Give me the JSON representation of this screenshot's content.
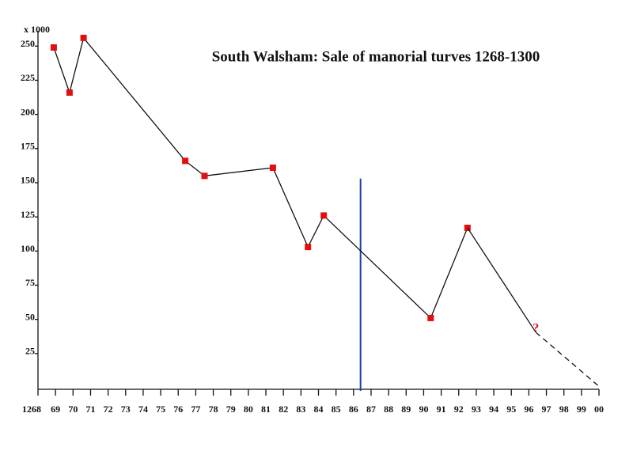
{
  "chart_data": {
    "type": "line",
    "title": "South Walsham: Sale of manorial turves 1268-1300",
    "ylabel": "x 1000",
    "xlim": [
      1268,
      1300
    ],
    "ylim": [
      0,
      260
    ],
    "yticks": [
      25,
      50,
      75,
      100,
      125,
      150,
      175,
      200,
      225,
      250
    ],
    "xticks": [
      1268,
      {
        "value": 1269,
        "label": "69"
      },
      {
        "value": 1270,
        "label": "70"
      },
      {
        "value": 1271,
        "label": "71"
      },
      {
        "value": 1272,
        "label": "72"
      },
      {
        "value": 1273,
        "label": "73"
      },
      {
        "value": 1274,
        "label": "74"
      },
      {
        "value": 1275,
        "label": "75"
      },
      {
        "value": 1276,
        "label": "76"
      },
      {
        "value": 1277,
        "label": "77"
      },
      {
        "value": 1278,
        "label": "78"
      },
      {
        "value": 1279,
        "label": "79"
      },
      {
        "value": 1280,
        "label": "80"
      },
      {
        "value": 1281,
        "label": "81"
      },
      {
        "value": 1282,
        "label": "82"
      },
      {
        "value": 1283,
        "label": "83"
      },
      {
        "value": 1284,
        "label": "84"
      },
      {
        "value": 1285,
        "label": "85"
      },
      {
        "value": 1286,
        "label": "86"
      },
      {
        "value": 1287,
        "label": "87"
      },
      {
        "value": 1288,
        "label": "88"
      },
      {
        "value": 1289,
        "label": "89"
      },
      {
        "value": 1290,
        "label": "90"
      },
      {
        "value": 1291,
        "label": "91"
      },
      {
        "value": 1292,
        "label": "92"
      },
      {
        "value": 1293,
        "label": "93"
      },
      {
        "value": 1294,
        "label": "94"
      },
      {
        "value": 1295,
        "label": "95"
      },
      {
        "value": 1296,
        "label": "96"
      },
      {
        "value": 1297,
        "label": "97"
      },
      {
        "value": 1298,
        "label": "98"
      },
      {
        "value": 1299,
        "label": "99"
      },
      {
        "value": 1300,
        "label": "00"
      }
    ],
    "series": [
      {
        "color": "#111111",
        "marker_color": "#e01010",
        "markers": true,
        "dashed": false,
        "x": [
          1268.9,
          1269.8,
          1270.6,
          1276.4,
          1277.5,
          1281.4,
          1283.4,
          1284.3,
          1290.4,
          1292.5
        ],
        "values": [
          249,
          216,
          256,
          166,
          155,
          161,
          103,
          126,
          51,
          117
        ]
      },
      {
        "color": "#111111",
        "markers": false,
        "dashed": false,
        "x": [
          1292.5,
          1296.4
        ],
        "values": [
          117,
          40.5
        ]
      },
      {
        "color": "#111111",
        "markers": false,
        "dashed": true,
        "x": [
          1296.4,
          1300
        ],
        "values": [
          40.5,
          1
        ]
      }
    ],
    "annotation": {
      "text": "?",
      "color": "#e01010"
    },
    "vline": {
      "x": 1286.4,
      "ylim": [
        0,
        153
      ],
      "color": "#1f3f9f"
    }
  }
}
